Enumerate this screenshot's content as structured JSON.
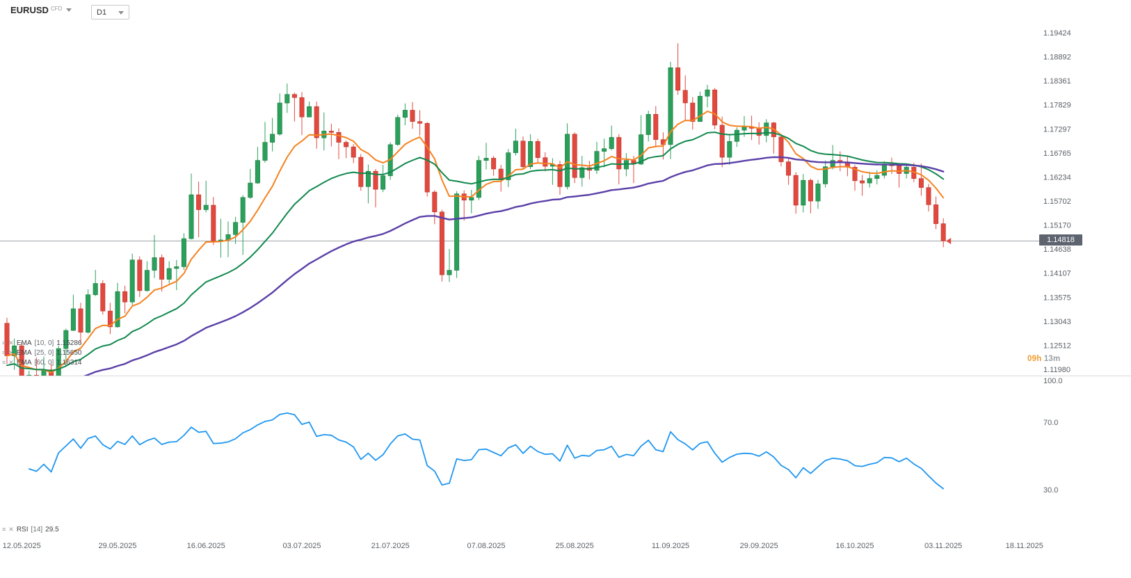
{
  "header": {
    "symbol": "EURUSD",
    "market_type": "CFD",
    "timeframe": "D1"
  },
  "icons": {
    "settings": "≡",
    "close": "✕"
  },
  "legend": {
    "indicators": [
      {
        "name": "EMA",
        "params": "[10, 0]",
        "value": "1.15286"
      },
      {
        "name": "EMA",
        "params": "[25, 0]",
        "value": "1.15650"
      },
      {
        "name": "EMA",
        "params": "[60, 0]",
        "value": "1.16314"
      }
    ],
    "oscillator": {
      "name": "RSI",
      "params": "[14]",
      "value": "29.5"
    }
  },
  "countdown": {
    "hours": "09h",
    "minutes": "13m"
  },
  "chart_data": {
    "type": "candlestick",
    "symbol": "EURUSD",
    "timeframe": "D1",
    "current_price": 1.14818,
    "current_price_label": "1.14818",
    "price_scale": {
      "top": 1.19424,
      "bottom": 1.1198
    },
    "price_labels": [
      "1.19424",
      "1.18892",
      "1.18361",
      "1.17829",
      "1.17297",
      "1.16765",
      "1.16234",
      "1.15702",
      "1.15170",
      "1.14638",
      "1.14107",
      "1.13575",
      "1.13043",
      "1.12512",
      "1.11980"
    ],
    "rsi_labels": [
      "100.0",
      "70.0",
      "30.0"
    ],
    "x_ticks": [
      [
        "12.05.2025",
        2
      ],
      [
        "29.05.2025",
        15
      ],
      [
        "16.06.2025",
        27
      ],
      [
        "03.07.2025",
        40
      ],
      [
        "21.07.2025",
        52
      ],
      [
        "07.08.2025",
        65
      ],
      [
        "25.08.2025",
        77
      ],
      [
        "11.09.2025",
        90
      ],
      [
        "29.09.2025",
        102
      ],
      [
        "16.10.2025",
        115
      ],
      [
        "03.11.2025",
        127
      ],
      [
        "18.11.2025",
        138
      ]
    ],
    "indicators": [
      {
        "type": "EMA",
        "period": 10,
        "offset": 0,
        "color": "#f58220",
        "seed": null
      },
      {
        "type": "EMA",
        "period": 25,
        "offset": 0,
        "color": "#10884d",
        "seed": 1.1205
      },
      {
        "type": "EMA",
        "period": 60,
        "offset": 0,
        "color": "#5a3fa8",
        "seed": 1.116
      }
    ],
    "oscillator": {
      "type": "RSI",
      "period": 14,
      "color": "#1e96f0"
    },
    "colors": {
      "up": "#2aa05a",
      "up_border": "#1e7a43",
      "down": "#e2483d",
      "down_border": "#b73a31",
      "current_line": "#9aa0a6",
      "separator": "#d9d9d9",
      "axis_text": "#5b6066",
      "badge_bg": "#5d6470"
    },
    "candles": [
      [
        1.13,
        1.1312,
        1.121,
        1.1228
      ],
      [
        1.1228,
        1.1266,
        1.1197,
        1.125
      ],
      [
        1.125,
        1.1258,
        1.1065,
        1.1088
      ],
      [
        1.1088,
        1.1195,
        1.1082,
        1.1185
      ],
      [
        1.1185,
        1.1224,
        1.1163,
        1.1175
      ],
      [
        1.1175,
        1.1226,
        1.117,
        1.1197
      ],
      [
        1.1197,
        1.121,
        1.1131,
        1.1162
      ],
      [
        1.1162,
        1.125,
        1.1155,
        1.1244
      ],
      [
        1.1244,
        1.1288,
        1.1205,
        1.1284
      ],
      [
        1.1284,
        1.1363,
        1.1283,
        1.1332
      ],
      [
        1.1332,
        1.1345,
        1.1255,
        1.128
      ],
      [
        1.128,
        1.1375,
        1.1277,
        1.1363
      ],
      [
        1.1363,
        1.1418,
        1.136,
        1.1388
      ],
      [
        1.1388,
        1.1395,
        1.1319,
        1.1327
      ],
      [
        1.1327,
        1.1345,
        1.1276,
        1.1292
      ],
      [
        1.1292,
        1.1389,
        1.129,
        1.137
      ],
      [
        1.137,
        1.1383,
        1.1322,
        1.1347
      ],
      [
        1.1347,
        1.1454,
        1.134,
        1.144
      ],
      [
        1.144,
        1.1448,
        1.1358,
        1.1372
      ],
      [
        1.1372,
        1.1437,
        1.137,
        1.1417
      ],
      [
        1.1417,
        1.1495,
        1.14,
        1.1445
      ],
      [
        1.1445,
        1.1452,
        1.137,
        1.1397
      ],
      [
        1.1397,
        1.1437,
        1.1388,
        1.1421
      ],
      [
        1.1421,
        1.144,
        1.1373,
        1.1425
      ],
      [
        1.1425,
        1.1499,
        1.1418,
        1.1487
      ],
      [
        1.1487,
        1.1631,
        1.1485,
        1.1584
      ],
      [
        1.1584,
        1.1613,
        1.149,
        1.1551
      ],
      [
        1.1551,
        1.1615,
        1.1545,
        1.1561
      ],
      [
        1.1561,
        1.1579,
        1.1473,
        1.1482
      ],
      [
        1.1482,
        1.1531,
        1.1445,
        1.1484
      ],
      [
        1.1484,
        1.1525,
        1.1446,
        1.1496
      ],
      [
        1.1496,
        1.1535,
        1.1475,
        1.1523
      ],
      [
        1.1523,
        1.1583,
        1.1451,
        1.1578
      ],
      [
        1.1578,
        1.1641,
        1.1575,
        1.161
      ],
      [
        1.161,
        1.169,
        1.1608,
        1.166
      ],
      [
        1.166,
        1.1745,
        1.1655,
        1.17
      ],
      [
        1.17,
        1.1754,
        1.168,
        1.1718
      ],
      [
        1.1718,
        1.1808,
        1.1715,
        1.1787
      ],
      [
        1.1787,
        1.183,
        1.1765,
        1.1806
      ],
      [
        1.1806,
        1.181,
        1.1746,
        1.1799
      ],
      [
        1.1799,
        1.1811,
        1.1716,
        1.1756
      ],
      [
        1.1756,
        1.179,
        1.1755,
        1.1779
      ],
      [
        1.1779,
        1.179,
        1.1686,
        1.171
      ],
      [
        1.171,
        1.1766,
        1.1682,
        1.1725
      ],
      [
        1.1725,
        1.1741,
        1.1691,
        1.1722
      ],
      [
        1.1722,
        1.1731,
        1.1663,
        1.17
      ],
      [
        1.17,
        1.1704,
        1.1665,
        1.169
      ],
      [
        1.169,
        1.1696,
        1.1654,
        1.1667
      ],
      [
        1.1667,
        1.1674,
        1.1593,
        1.1602
      ],
      [
        1.1602,
        1.1651,
        1.1565,
        1.1636
      ],
      [
        1.1636,
        1.1641,
        1.1556,
        1.1596
      ],
      [
        1.1596,
        1.165,
        1.159,
        1.1626
      ],
      [
        1.1626,
        1.17,
        1.1617,
        1.1695
      ],
      [
        1.1695,
        1.1761,
        1.1692,
        1.1755
      ],
      [
        1.1755,
        1.1786,
        1.1738,
        1.1771
      ],
      [
        1.1771,
        1.1789,
        1.173,
        1.1746
      ],
      [
        1.1746,
        1.1771,
        1.1715,
        1.1742
      ],
      [
        1.1742,
        1.1745,
        1.158,
        1.159
      ],
      [
        1.159,
        1.1594,
        1.1519,
        1.1546
      ],
      [
        1.1546,
        1.1551,
        1.1392,
        1.1407
      ],
      [
        1.1407,
        1.1464,
        1.1391,
        1.1417
      ],
      [
        1.1417,
        1.1592,
        1.14,
        1.1586
      ],
      [
        1.1586,
        1.1594,
        1.1527,
        1.1572
      ],
      [
        1.1572,
        1.1595,
        1.1543,
        1.1578
      ],
      [
        1.1578,
        1.167,
        1.1572,
        1.166
      ],
      [
        1.166,
        1.1699,
        1.164,
        1.1665
      ],
      [
        1.1665,
        1.167,
        1.1626,
        1.1641
      ],
      [
        1.1641,
        1.165,
        1.1591,
        1.1617
      ],
      [
        1.1617,
        1.1685,
        1.1601,
        1.1677
      ],
      [
        1.1677,
        1.173,
        1.1671,
        1.1703
      ],
      [
        1.1703,
        1.1713,
        1.164,
        1.1646
      ],
      [
        1.1646,
        1.1718,
        1.1641,
        1.1702
      ],
      [
        1.1702,
        1.1708,
        1.1654,
        1.1666
      ],
      [
        1.1666,
        1.1678,
        1.1636,
        1.1647
      ],
      [
        1.1647,
        1.1665,
        1.1606,
        1.1651
      ],
      [
        1.1651,
        1.1659,
        1.1584,
        1.1602
      ],
      [
        1.1602,
        1.1742,
        1.1596,
        1.1718
      ],
      [
        1.1718,
        1.1722,
        1.161,
        1.1622
      ],
      [
        1.1622,
        1.167,
        1.1602,
        1.1644
      ],
      [
        1.1644,
        1.1659,
        1.1618,
        1.1638
      ],
      [
        1.1638,
        1.1701,
        1.163,
        1.168
      ],
      [
        1.168,
        1.1708,
        1.1645,
        1.1686
      ],
      [
        1.1686,
        1.1737,
        1.1682,
        1.1711
      ],
      [
        1.1711,
        1.1718,
        1.1607,
        1.1641
      ],
      [
        1.1641,
        1.1676,
        1.1625,
        1.166
      ],
      [
        1.166,
        1.167,
        1.161,
        1.1652
      ],
      [
        1.1652,
        1.176,
        1.165,
        1.1717
      ],
      [
        1.1717,
        1.177,
        1.1702,
        1.1762
      ],
      [
        1.1762,
        1.178,
        1.1689,
        1.1706
      ],
      [
        1.1706,
        1.1722,
        1.1662,
        1.1695
      ],
      [
        1.1695,
        1.1878,
        1.1663,
        1.1865
      ],
      [
        1.1865,
        1.1919,
        1.1805,
        1.1815
      ],
      [
        1.1815,
        1.1848,
        1.1747,
        1.1787
      ],
      [
        1.1787,
        1.18,
        1.1728,
        1.1746
      ],
      [
        1.1746,
        1.1812,
        1.1745,
        1.1802
      ],
      [
        1.1802,
        1.1827,
        1.1777,
        1.1816
      ],
      [
        1.1816,
        1.182,
        1.1729,
        1.1738
      ],
      [
        1.1738,
        1.1757,
        1.1645,
        1.1667
      ],
      [
        1.1667,
        1.1716,
        1.165,
        1.1702
      ],
      [
        1.1702,
        1.1733,
        1.169,
        1.1727
      ],
      [
        1.1727,
        1.1758,
        1.1712,
        1.1734
      ],
      [
        1.1734,
        1.1759,
        1.1705,
        1.1731
      ],
      [
        1.1731,
        1.1744,
        1.1695,
        1.1715
      ],
      [
        1.1715,
        1.1751,
        1.17,
        1.1743
      ],
      [
        1.1743,
        1.1745,
        1.1675,
        1.1712
      ],
      [
        1.1712,
        1.1718,
        1.1647,
        1.1657
      ],
      [
        1.1657,
        1.1665,
        1.1606,
        1.1627
      ],
      [
        1.1627,
        1.1634,
        1.1542,
        1.1561
      ],
      [
        1.1561,
        1.163,
        1.1545,
        1.1616
      ],
      [
        1.1616,
        1.162,
        1.1543,
        1.157
      ],
      [
        1.157,
        1.1617,
        1.1553,
        1.1608
      ],
      [
        1.1608,
        1.166,
        1.16,
        1.1646
      ],
      [
        1.1646,
        1.1694,
        1.164,
        1.166
      ],
      [
        1.166,
        1.168,
        1.1636,
        1.1655
      ],
      [
        1.1655,
        1.167,
        1.1625,
        1.1645
      ],
      [
        1.1645,
        1.165,
        1.1593,
        1.1615
      ],
      [
        1.1615,
        1.1628,
        1.1582,
        1.161
      ],
      [
        1.161,
        1.1635,
        1.16,
        1.162
      ],
      [
        1.162,
        1.1638,
        1.1607,
        1.1627
      ],
      [
        1.1627,
        1.1658,
        1.162,
        1.165
      ],
      [
        1.165,
        1.1666,
        1.163,
        1.1648
      ],
      [
        1.1648,
        1.1653,
        1.16,
        1.1631
      ],
      [
        1.1631,
        1.165,
        1.162,
        1.1645
      ],
      [
        1.1645,
        1.1655,
        1.1612,
        1.162
      ],
      [
        1.162,
        1.1653,
        1.1582,
        1.16
      ],
      [
        1.16,
        1.1608,
        1.1547,
        1.1562
      ],
      [
        1.1562,
        1.158,
        1.1508,
        1.152
      ],
      [
        1.152,
        1.1532,
        1.1468,
        1.1482
      ]
    ]
  }
}
